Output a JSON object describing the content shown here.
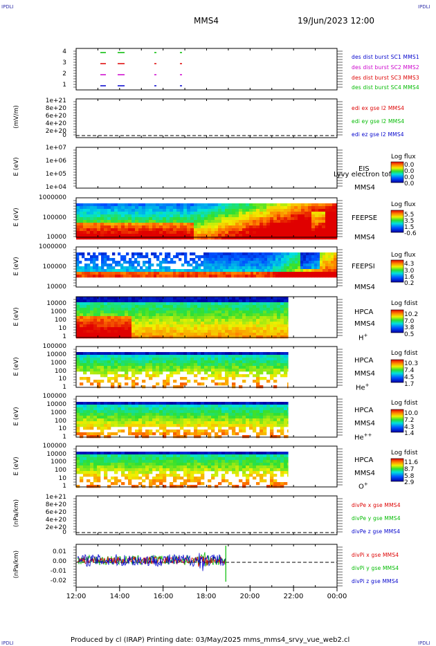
{
  "header": {
    "corner_tl": "IPDLI",
    "corner_tr": "IPDLI",
    "corner_bl": "IPDLI",
    "corner_br": "IPDLI",
    "spacecraft": "MMS4",
    "datetime": "19/Jun/2023 12:00"
  },
  "footer": {
    "text": "Produced by cl (IRAP)   Printing date: 03/May/2025   mms_mms4_srvy_vue_web2.cl"
  },
  "colors": {
    "blue": "#0000cc",
    "magenta": "#cc00cc",
    "red": "#dd0000",
    "green": "#00bb00"
  },
  "chart_data": [
    {
      "type": "scatter",
      "name": "burst-availability",
      "yticks": [
        "4",
        "3",
        "2",
        "1"
      ],
      "legend": [
        {
          "text": "des dist burst SC1 MMS1",
          "color": "#0000cc"
        },
        {
          "text": "des dist burst SC2 MMS2",
          "color": "#cc00cc"
        },
        {
          "text": "des dist burst SC3 MMS3",
          "color": "#dd0000"
        },
        {
          "text": "des dist burst SC4 MMS4",
          "color": "#00bb00"
        }
      ]
    },
    {
      "type": "line",
      "name": "edi-efield",
      "ylabel": "(mV/m)",
      "yticks": [
        "1e+21",
        "8e+20",
        "6e+20",
        "4e+20",
        "2e+20",
        "0"
      ],
      "legend": [
        {
          "text": "edi ex gse l2 MMS4",
          "color": "#dd0000"
        },
        {
          "text": "edi ey gse l2 MMS4",
          "color": "#00bb00"
        },
        {
          "text": "edi ez gse l2 MMS4",
          "color": "#0000cc"
        }
      ]
    },
    {
      "type": "heatmap",
      "name": "eis",
      "ylabel": "E (eV)",
      "yticks": [
        "1e+07",
        "1e+06",
        "1e+05",
        "1e+04"
      ],
      "side": [
        "EIS",
        "MMS4"
      ],
      "overlay": "Lyvy electron tof",
      "colorbar_title": "Log flux",
      "colorbar_values": [
        "0.0",
        "0.0",
        "0.0",
        "0.0"
      ]
    },
    {
      "type": "heatmap",
      "name": "feeps-electron",
      "ylabel": "E (eV)",
      "yticks": [
        "1000000",
        "100000",
        "10000"
      ],
      "side": [
        "FEEPSE",
        "MMS4"
      ],
      "colorbar_title": "Log flux",
      "colorbar_values": [
        "5.5",
        "3.5",
        "1.5",
        "-0.6"
      ]
    },
    {
      "type": "heatmap",
      "name": "feeps-ion",
      "ylabel": "E (eV)",
      "yticks": [
        "1000000",
        "100000",
        "10000"
      ],
      "side": [
        "FEEPSI",
        "MMS4"
      ],
      "colorbar_title": "Log flux",
      "colorbar_values": [
        "4.3",
        "3.0",
        "1.6",
        "0.2"
      ]
    },
    {
      "type": "heatmap",
      "name": "hpca-h",
      "ylabel": "E (eV)",
      "yticks": [
        "10000",
        "1000",
        "100",
        "10",
        "1"
      ],
      "side": [
        "HPCA",
        "MMS4"
      ],
      "species": "H",
      "species_charge": "+",
      "colorbar_title": "Log fdist",
      "colorbar_values": [
        "10.2",
        "7.0",
        "3.8",
        "0.5"
      ]
    },
    {
      "type": "heatmap",
      "name": "hpca-he",
      "ylabel": "E (eV)",
      "yticks": [
        "100000",
        "10000",
        "1000",
        "100",
        "10",
        "1"
      ],
      "side": [
        "HPCA",
        "MMS4"
      ],
      "species": "He",
      "species_charge": "+",
      "colorbar_title": "Log fdist",
      "colorbar_values": [
        "10.3",
        "7.4",
        "4.5",
        "1.7"
      ]
    },
    {
      "type": "heatmap",
      "name": "hpca-he2",
      "ylabel": "E (eV)",
      "yticks": [
        "100000",
        "10000",
        "1000",
        "100",
        "10",
        "1"
      ],
      "side": [
        "HPCA",
        "MMS4"
      ],
      "species": "He",
      "species_charge": "++",
      "colorbar_title": "Log fdist",
      "colorbar_values": [
        "10.0",
        "7.2",
        "4.3",
        "1.4"
      ]
    },
    {
      "type": "heatmap",
      "name": "hpca-o",
      "ylabel": "E (eV)",
      "yticks": [
        "100000",
        "10000",
        "1000",
        "100",
        "10",
        "1"
      ],
      "side": [
        "HPCA",
        "MMS4"
      ],
      "species": "O",
      "species_charge": "+",
      "colorbar_title": "Log fdist",
      "colorbar_values": [
        "11.6",
        "8.7",
        "5.8",
        "2.9"
      ]
    },
    {
      "type": "line",
      "name": "divpe",
      "ylabel": "(nPa/km)",
      "yticks": [
        "1e+21",
        "8e+20",
        "6e+20",
        "4e+20",
        "2e+20",
        "0"
      ],
      "legend": [
        {
          "text": "divPe x gse MMS4",
          "color": "#dd0000"
        },
        {
          "text": "divPe y gse MMS4",
          "color": "#00bb00"
        },
        {
          "text": "divPe z gse MMS4",
          "color": "#0000cc"
        }
      ]
    },
    {
      "type": "line",
      "name": "divpi",
      "ylabel": "(nPa/km)",
      "yticks": [
        "0.01",
        "0.00",
        "-0.01",
        "-0.02"
      ],
      "ylim": [
        -0.022,
        0.013
      ],
      "legend": [
        {
          "text": "divPi x gse MMS4",
          "color": "#dd0000"
        },
        {
          "text": "divPi y gse MMS4",
          "color": "#00bb00"
        },
        {
          "text": "divPi z gse MMS4",
          "color": "#0000cc"
        }
      ]
    }
  ],
  "xaxis": {
    "ticks": [
      "12:00",
      "14:00",
      "16:00",
      "18:00",
      "20:00",
      "22:00",
      "00:00"
    ],
    "data_end": "18:53",
    "hpca_end": "21:45"
  }
}
